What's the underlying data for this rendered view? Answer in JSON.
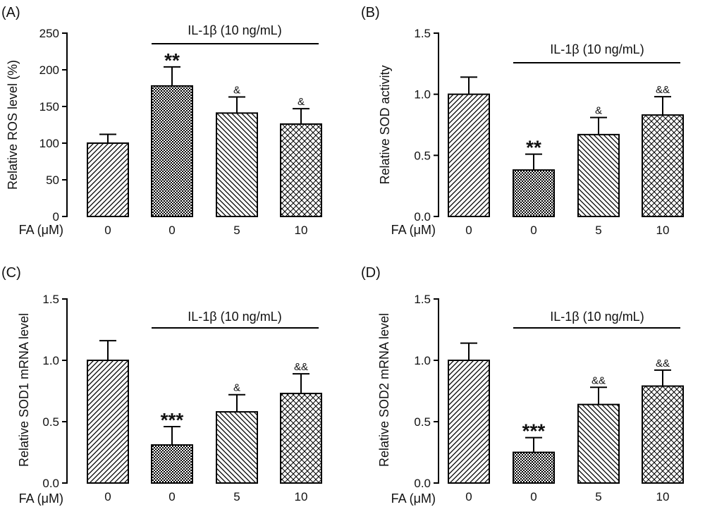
{
  "chart_data": [
    {
      "type": "bar",
      "panel_label": "(A)",
      "ylabel": "Relative ROS level (%)",
      "ylim": [
        0,
        250
      ],
      "yticks": [
        "0",
        "50",
        "100",
        "150",
        "200",
        "250"
      ],
      "xlabel": "FA (μM)",
      "categories": [
        "0",
        "0",
        "5",
        "10"
      ],
      "values": [
        100,
        178,
        141,
        126
      ],
      "errors": [
        12,
        26,
        22,
        21
      ],
      "annotations": [
        "",
        "**",
        "&",
        "&"
      ],
      "patterns": [
        "diag-right",
        "checker",
        "diag-left",
        "diamond"
      ],
      "bracket_label": "IL-1β (10 ng/mL)"
    },
    {
      "type": "bar",
      "panel_label": "(B)",
      "ylabel": "Relative SOD activity",
      "ylim": [
        0,
        1.5
      ],
      "yticks": [
        "0.0",
        "0.5",
        "1.0",
        "1.5"
      ],
      "xlabel": "FA (μM)",
      "categories": [
        "0",
        "0",
        "5",
        "10"
      ],
      "values": [
        1.0,
        0.38,
        0.67,
        0.83
      ],
      "errors": [
        0.14,
        0.13,
        0.14,
        0.15
      ],
      "annotations": [
        "",
        "**",
        "&",
        "&&"
      ],
      "patterns": [
        "diag-right",
        "checker",
        "diag-left",
        "diamond"
      ],
      "bracket_label": "IL-1β (10 ng/mL)"
    },
    {
      "type": "bar",
      "panel_label": "(C)",
      "ylabel": "Relative SOD1 mRNA level",
      "ylim": [
        0,
        1.5
      ],
      "yticks": [
        "0.0",
        "0.5",
        "1.0",
        "1.5"
      ],
      "xlabel": "FA (μM)",
      "categories": [
        "0",
        "0",
        "5",
        "10"
      ],
      "values": [
        1.0,
        0.31,
        0.58,
        0.73
      ],
      "errors": [
        0.16,
        0.15,
        0.14,
        0.16
      ],
      "annotations": [
        "",
        "***",
        "&",
        "&&"
      ],
      "patterns": [
        "diag-right",
        "checker",
        "diag-left",
        "diamond"
      ],
      "bracket_label": "IL-1β (10 ng/mL)"
    },
    {
      "type": "bar",
      "panel_label": "(D)",
      "ylabel": "Relative SOD2 mRNA level",
      "ylim": [
        0,
        1.5
      ],
      "yticks": [
        "0.0",
        "0.5",
        "1.0",
        "1.5"
      ],
      "xlabel": "FA (μM)",
      "categories": [
        "0",
        "0",
        "5",
        "10"
      ],
      "values": [
        1.0,
        0.25,
        0.64,
        0.79
      ],
      "errors": [
        0.14,
        0.12,
        0.14,
        0.13
      ],
      "annotations": [
        "",
        "***",
        "&&",
        "&&"
      ],
      "patterns": [
        "diag-right",
        "checker",
        "diag-left",
        "diamond"
      ],
      "bracket_label": "IL-1β (10 ng/mL)"
    }
  ],
  "style": {
    "ink": "#000000",
    "background": "#ffffff"
  }
}
